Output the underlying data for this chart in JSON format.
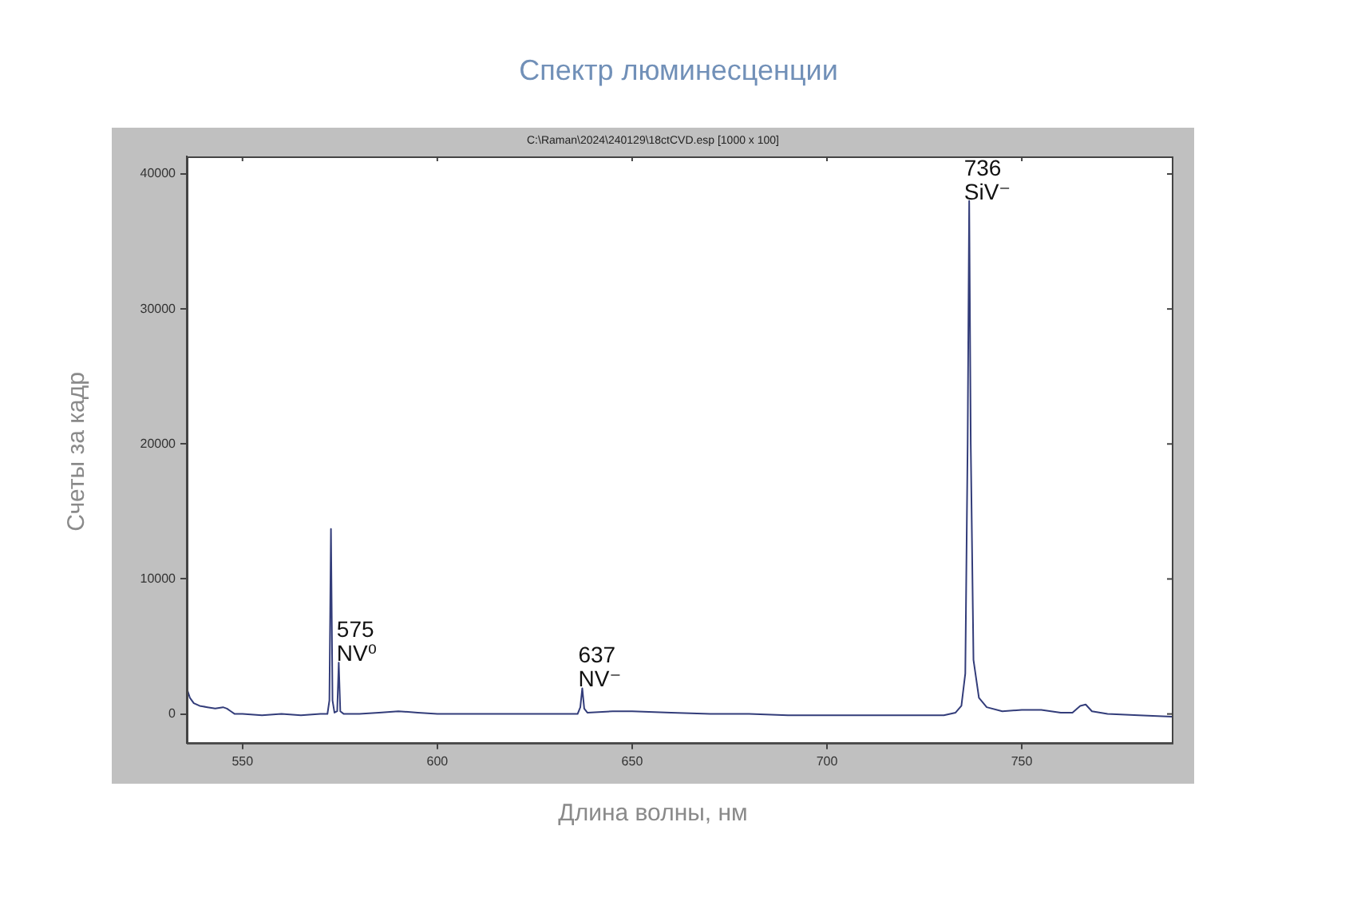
{
  "chart_data": {
    "type": "line",
    "title": "Спектр люминесценции",
    "subtitle": "C:\\Raman\\2024\\240129\\18ctCVD.esp [1000 x 100]",
    "xlabel": "Длина волны, нм",
    "ylabel": "Счеты за кадр",
    "x": [
      535.7,
      536.5,
      537.5,
      539,
      541,
      543,
      545,
      546,
      547,
      548,
      550,
      555,
      560,
      565,
      570,
      571.8,
      572.3,
      572.7,
      573.1,
      573.6,
      574.3,
      574.7,
      575.1,
      576,
      580,
      585,
      590,
      595,
      600,
      610,
      620,
      630,
      636,
      636.7,
      637.2,
      637.7,
      638.5,
      645,
      650,
      660,
      670,
      680,
      690,
      700,
      710,
      720,
      730,
      733,
      734.5,
      735.5,
      736.1,
      736.5,
      736.9,
      737.6,
      739,
      741,
      745,
      750,
      755,
      760,
      763,
      765,
      766.4,
      768,
      772,
      780,
      788.5
    ],
    "series": [
      {
        "color": "#333d7a",
        "values": [
          1900,
          1200,
          800,
          600,
          500,
          400,
          500,
          400,
          200,
          0,
          0,
          -100,
          0,
          -100,
          0,
          0,
          1000,
          13700,
          1000,
          100,
          200,
          3800,
          200,
          0,
          0,
          100,
          200,
          100,
          0,
          0,
          0,
          0,
          0,
          500,
          1900,
          400,
          100,
          200,
          200,
          100,
          0,
          0,
          -100,
          -100,
          -100,
          -100,
          -100,
          100,
          600,
          3000,
          20000,
          38000,
          20000,
          4000,
          1200,
          500,
          200,
          300,
          300,
          100,
          100,
          600,
          700,
          200,
          0,
          -100,
          -200
        ]
      }
    ],
    "xlim": [
      535.7,
      788.5
    ],
    "xticks": [
      550,
      600,
      650,
      700,
      750
    ],
    "ylim": [
      -2140,
      41300
    ],
    "yticks": [
      0,
      10000,
      20000,
      30000,
      40000
    ],
    "grid": false,
    "legend": false,
    "marker": "none",
    "line_style": "solid",
    "annotations": [
      {
        "text": "575\nNV⁰",
        "x": 575,
        "y": 3800
      },
      {
        "text": "637\nNV⁻",
        "x": 637,
        "y": 1900
      },
      {
        "text": "736\nSiV⁻",
        "x": 736,
        "y": 38000
      }
    ]
  }
}
